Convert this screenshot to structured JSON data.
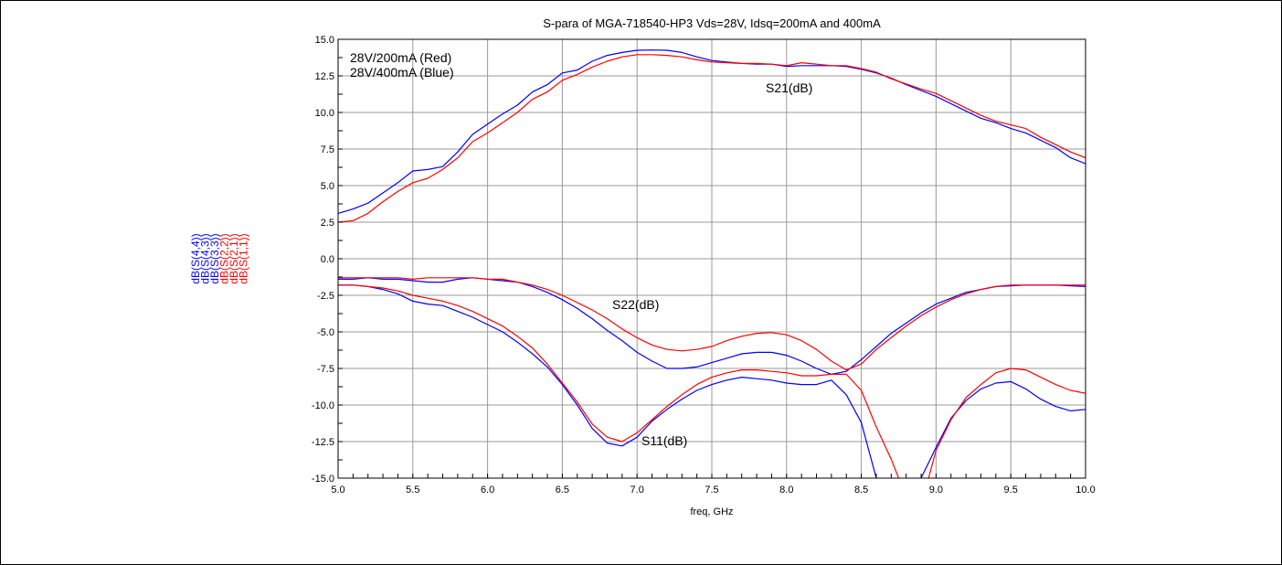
{
  "chart_data": {
    "type": "line",
    "title": "S-para of MGA-718540-HP3 Vds=28V, Idsq=200mA and 400mA",
    "xlabel": "freq, GHz",
    "xlim": [
      5.0,
      10.0
    ],
    "ylim": [
      -15.0,
      15.0
    ],
    "x_ticks": [
      "5.0",
      "5.5",
      "6.0",
      "6.5",
      "7.0",
      "7.5",
      "8.0",
      "8.5",
      "9.0",
      "9.5",
      "10.0"
    ],
    "y_ticks": [
      "15.0",
      "12.5",
      "10.0",
      "7.5",
      "5.0",
      "2.5",
      "0.0",
      "-2.5",
      "-5.0",
      "-7.5",
      "-10.0",
      "-12.5",
      "-15.0"
    ],
    "grid": true,
    "ylabels": [
      {
        "text": "dB(S(4,4))",
        "color": "#0000ff"
      },
      {
        "text": "dB(S(4,3))",
        "color": "#0000ff"
      },
      {
        "text": "dB(S(3,3))",
        "color": "#0000ff"
      },
      {
        "text": "dB(S(2,2))",
        "color": "#ff0000"
      },
      {
        "text": "dB(S(2,1))",
        "color": "#ff0000"
      },
      {
        "text": "dB(S(1,1))",
        "color": "#ff0000"
      }
    ],
    "annotations": {
      "legend_red": "28V/200mA (Red)",
      "legend_blue": "28V/400mA (Blue)",
      "s21": "S21(dB)",
      "s22": "S22(dB)",
      "s11": "S11(dB)"
    },
    "series": [
      {
        "color": "#0000ff",
        "x": [
          5.0,
          5.1,
          5.2,
          5.3,
          5.4,
          5.5,
          5.6,
          5.7,
          5.8,
          5.9,
          6.0,
          6.1,
          6.2,
          6.3,
          6.4,
          6.5,
          6.6,
          6.7,
          6.8,
          6.9,
          7.0,
          7.1,
          7.2,
          7.3,
          7.4,
          7.5,
          7.6,
          7.7,
          7.8,
          7.9,
          8.0,
          8.1,
          8.2,
          8.3,
          8.4,
          8.5,
          8.6,
          8.7,
          8.8,
          8.9,
          9.0,
          9.1,
          9.2,
          9.3,
          9.4,
          9.5,
          9.6,
          9.7,
          9.8,
          9.9,
          10.0
        ],
        "y": [
          3.1,
          3.4,
          3.8,
          4.5,
          5.2,
          6.0,
          6.1,
          6.3,
          7.3,
          8.5,
          9.2,
          9.9,
          10.5,
          11.4,
          11.9,
          12.7,
          12.9,
          13.5,
          13.9,
          14.1,
          14.25,
          14.27,
          14.25,
          14.1,
          13.8,
          13.55,
          13.45,
          13.35,
          13.3,
          13.3,
          13.15,
          13.2,
          13.2,
          13.2,
          13.15,
          12.95,
          12.7,
          12.35,
          11.9,
          11.5,
          11.1,
          10.6,
          10.1,
          9.6,
          9.3,
          8.9,
          8.6,
          8.1,
          7.6,
          6.9,
          6.5
        ]
      },
      {
        "color": "#ff0000",
        "x": [
          5.0,
          5.1,
          5.2,
          5.3,
          5.4,
          5.5,
          5.6,
          5.7,
          5.8,
          5.9,
          6.0,
          6.1,
          6.2,
          6.3,
          6.4,
          6.5,
          6.6,
          6.7,
          6.8,
          6.9,
          7.0,
          7.1,
          7.2,
          7.3,
          7.4,
          7.5,
          7.6,
          7.7,
          7.8,
          7.9,
          8.0,
          8.1,
          8.2,
          8.3,
          8.4,
          8.5,
          8.6,
          8.7,
          8.8,
          8.9,
          9.0,
          9.1,
          9.2,
          9.3,
          9.4,
          9.5,
          9.6,
          9.7,
          9.8,
          9.9,
          10.0
        ],
        "y": [
          2.5,
          2.6,
          3.1,
          3.9,
          4.6,
          5.2,
          5.5,
          6.1,
          6.9,
          8.0,
          8.6,
          9.3,
          10.0,
          10.9,
          11.4,
          12.2,
          12.6,
          13.1,
          13.5,
          13.8,
          13.95,
          13.95,
          13.9,
          13.8,
          13.6,
          13.45,
          13.4,
          13.35,
          13.35,
          13.3,
          13.2,
          13.4,
          13.3,
          13.2,
          13.2,
          13.0,
          12.75,
          12.3,
          11.95,
          11.6,
          11.3,
          10.8,
          10.3,
          9.8,
          9.4,
          9.15,
          8.9,
          8.3,
          7.8,
          7.3,
          6.9
        ]
      },
      {
        "color": "#0000ff",
        "x": [
          5.0,
          5.1,
          5.2,
          5.3,
          5.4,
          5.5,
          5.6,
          5.7,
          5.8,
          5.9,
          6.0,
          6.1,
          6.2,
          6.3,
          6.4,
          6.5,
          6.6,
          6.7,
          6.8,
          6.9,
          7.0,
          7.1,
          7.2,
          7.3,
          7.4,
          7.5,
          7.6,
          7.7,
          7.8,
          7.9,
          8.0,
          8.1,
          8.2,
          8.3,
          8.4,
          8.5,
          8.6,
          8.7,
          8.8,
          8.9,
          9.0,
          9.1,
          9.2,
          9.3,
          9.4,
          9.5,
          9.6,
          9.7,
          9.8,
          9.9,
          10.0
        ],
        "y": [
          -1.4,
          -1.4,
          -1.3,
          -1.4,
          -1.4,
          -1.5,
          -1.6,
          -1.6,
          -1.4,
          -1.3,
          -1.4,
          -1.5,
          -1.6,
          -1.9,
          -2.3,
          -2.8,
          -3.4,
          -4.1,
          -4.9,
          -5.6,
          -6.4,
          -7.0,
          -7.5,
          -7.5,
          -7.4,
          -7.1,
          -6.8,
          -6.5,
          -6.4,
          -6.4,
          -6.6,
          -7.0,
          -7.5,
          -7.9,
          -7.7,
          -6.9,
          -6.0,
          -5.1,
          -4.4,
          -3.7,
          -3.1,
          -2.7,
          -2.3,
          -2.1,
          -1.9,
          -1.85,
          -1.8,
          -1.8,
          -1.8,
          -1.85,
          -1.9
        ]
      },
      {
        "color": "#ff0000",
        "x": [
          5.0,
          5.1,
          5.2,
          5.3,
          5.4,
          5.5,
          5.6,
          5.7,
          5.8,
          5.9,
          6.0,
          6.1,
          6.2,
          6.3,
          6.4,
          6.5,
          6.6,
          6.7,
          6.8,
          6.9,
          7.0,
          7.1,
          7.2,
          7.3,
          7.4,
          7.5,
          7.6,
          7.7,
          7.8,
          7.9,
          8.0,
          8.1,
          8.2,
          8.3,
          8.4,
          8.5,
          8.6,
          8.7,
          8.8,
          8.9,
          9.0,
          9.1,
          9.2,
          9.3,
          9.4,
          9.5,
          9.6,
          9.7,
          9.8,
          9.9,
          10.0
        ],
        "y": [
          -1.3,
          -1.3,
          -1.3,
          -1.3,
          -1.3,
          -1.4,
          -1.3,
          -1.3,
          -1.3,
          -1.3,
          -1.4,
          -1.4,
          -1.6,
          -1.8,
          -2.1,
          -2.5,
          -3.0,
          -3.5,
          -4.1,
          -4.8,
          -5.4,
          -5.9,
          -6.2,
          -6.3,
          -6.2,
          -6.0,
          -5.6,
          -5.3,
          -5.1,
          -5.05,
          -5.2,
          -5.6,
          -6.2,
          -7.0,
          -7.6,
          -7.2,
          -6.2,
          -5.4,
          -4.6,
          -3.9,
          -3.3,
          -2.8,
          -2.4,
          -2.1,
          -1.9,
          -1.8,
          -1.8,
          -1.8,
          -1.8,
          -1.8,
          -1.8
        ]
      },
      {
        "color": "#0000ff",
        "x": [
          5.0,
          5.1,
          5.2,
          5.3,
          5.4,
          5.5,
          5.6,
          5.7,
          5.8,
          5.9,
          6.0,
          6.1,
          6.2,
          6.3,
          6.4,
          6.5,
          6.6,
          6.7,
          6.8,
          6.9,
          7.0,
          7.1,
          7.2,
          7.3,
          7.4,
          7.5,
          7.6,
          7.7,
          7.8,
          7.9,
          8.0,
          8.1,
          8.2,
          8.3,
          8.4,
          8.5,
          8.6
        ],
        "y": [
          -1.8,
          -1.8,
          -1.9,
          -2.1,
          -2.4,
          -2.9,
          -3.1,
          -3.2,
          -3.6,
          -4.0,
          -4.5,
          -5.0,
          -5.7,
          -6.5,
          -7.4,
          -8.6,
          -10.0,
          -11.6,
          -12.6,
          -12.8,
          -12.2,
          -11.1,
          -10.3,
          -9.6,
          -9.0,
          -8.6,
          -8.3,
          -8.1,
          -8.2,
          -8.3,
          -8.5,
          -8.6,
          -8.6,
          -8.3,
          -9.3,
          -11.2,
          -15.0
        ]
      },
      {
        "color": "#0000ff",
        "x": [
          8.9,
          9.0,
          9.1,
          9.2,
          9.3,
          9.4,
          9.5,
          9.6,
          9.7,
          9.8,
          9.9,
          10.0
        ],
        "y": [
          -15.0,
          -12.9,
          -10.9,
          -9.7,
          -8.9,
          -8.5,
          -8.4,
          -8.9,
          -9.6,
          -10.1,
          -10.4,
          -10.3
        ]
      },
      {
        "color": "#ff0000",
        "x": [
          5.0,
          5.1,
          5.2,
          5.3,
          5.4,
          5.5,
          5.6,
          5.7,
          5.8,
          5.9,
          6.0,
          6.1,
          6.2,
          6.3,
          6.4,
          6.5,
          6.6,
          6.7,
          6.8,
          6.9,
          7.0,
          7.1,
          7.2,
          7.3,
          7.4,
          7.5,
          7.6,
          7.7,
          7.8,
          7.9,
          8.0,
          8.1,
          8.2,
          8.3,
          8.4,
          8.5,
          8.6,
          8.7,
          8.75
        ],
        "y": [
          -1.8,
          -1.8,
          -1.9,
          -2.0,
          -2.2,
          -2.5,
          -2.7,
          -2.9,
          -3.2,
          -3.6,
          -4.1,
          -4.6,
          -5.3,
          -6.1,
          -7.2,
          -8.5,
          -9.8,
          -11.3,
          -12.2,
          -12.5,
          -11.9,
          -11.0,
          -10.1,
          -9.3,
          -8.6,
          -8.1,
          -7.8,
          -7.6,
          -7.6,
          -7.7,
          -7.8,
          -8.0,
          -8.0,
          -7.9,
          -7.9,
          -9.0,
          -11.5,
          -13.7,
          -15.0
        ]
      },
      {
        "color": "#ff0000",
        "x": [
          8.95,
          9.0,
          9.1,
          9.2,
          9.3,
          9.4,
          9.5,
          9.6,
          9.7,
          9.8,
          9.9,
          10.0
        ],
        "y": [
          -15.0,
          -13.1,
          -11.0,
          -9.5,
          -8.6,
          -7.8,
          -7.5,
          -7.6,
          -8.1,
          -8.6,
          -9.0,
          -9.2
        ]
      }
    ]
  }
}
